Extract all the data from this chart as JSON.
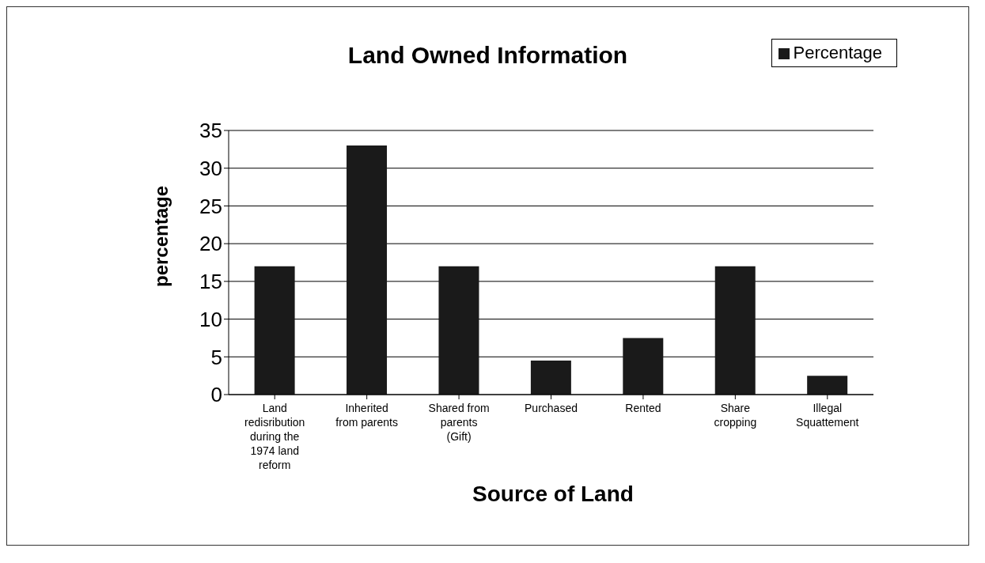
{
  "chart_data": {
    "type": "bar",
    "title": "Land Owned Information",
    "xlabel": "Source of Land",
    "ylabel": "percentage",
    "categories": [
      "Land redisribution during the 1974 land reform",
      "Inherited from parents",
      "Shared from parents (Gift)",
      "Purchased",
      "Rented",
      "Share cropping",
      "Illegal Squattement"
    ],
    "series": [
      {
        "name": "Percentage",
        "color": "#1a1a1a",
        "values": [
          17,
          33,
          17,
          4.5,
          7.5,
          17,
          2.5
        ]
      }
    ],
    "ylim": [
      0,
      35
    ],
    "yticks": [
      0,
      5,
      10,
      15,
      20,
      25,
      30,
      35
    ],
    "grid": "y",
    "legend": "top right"
  }
}
